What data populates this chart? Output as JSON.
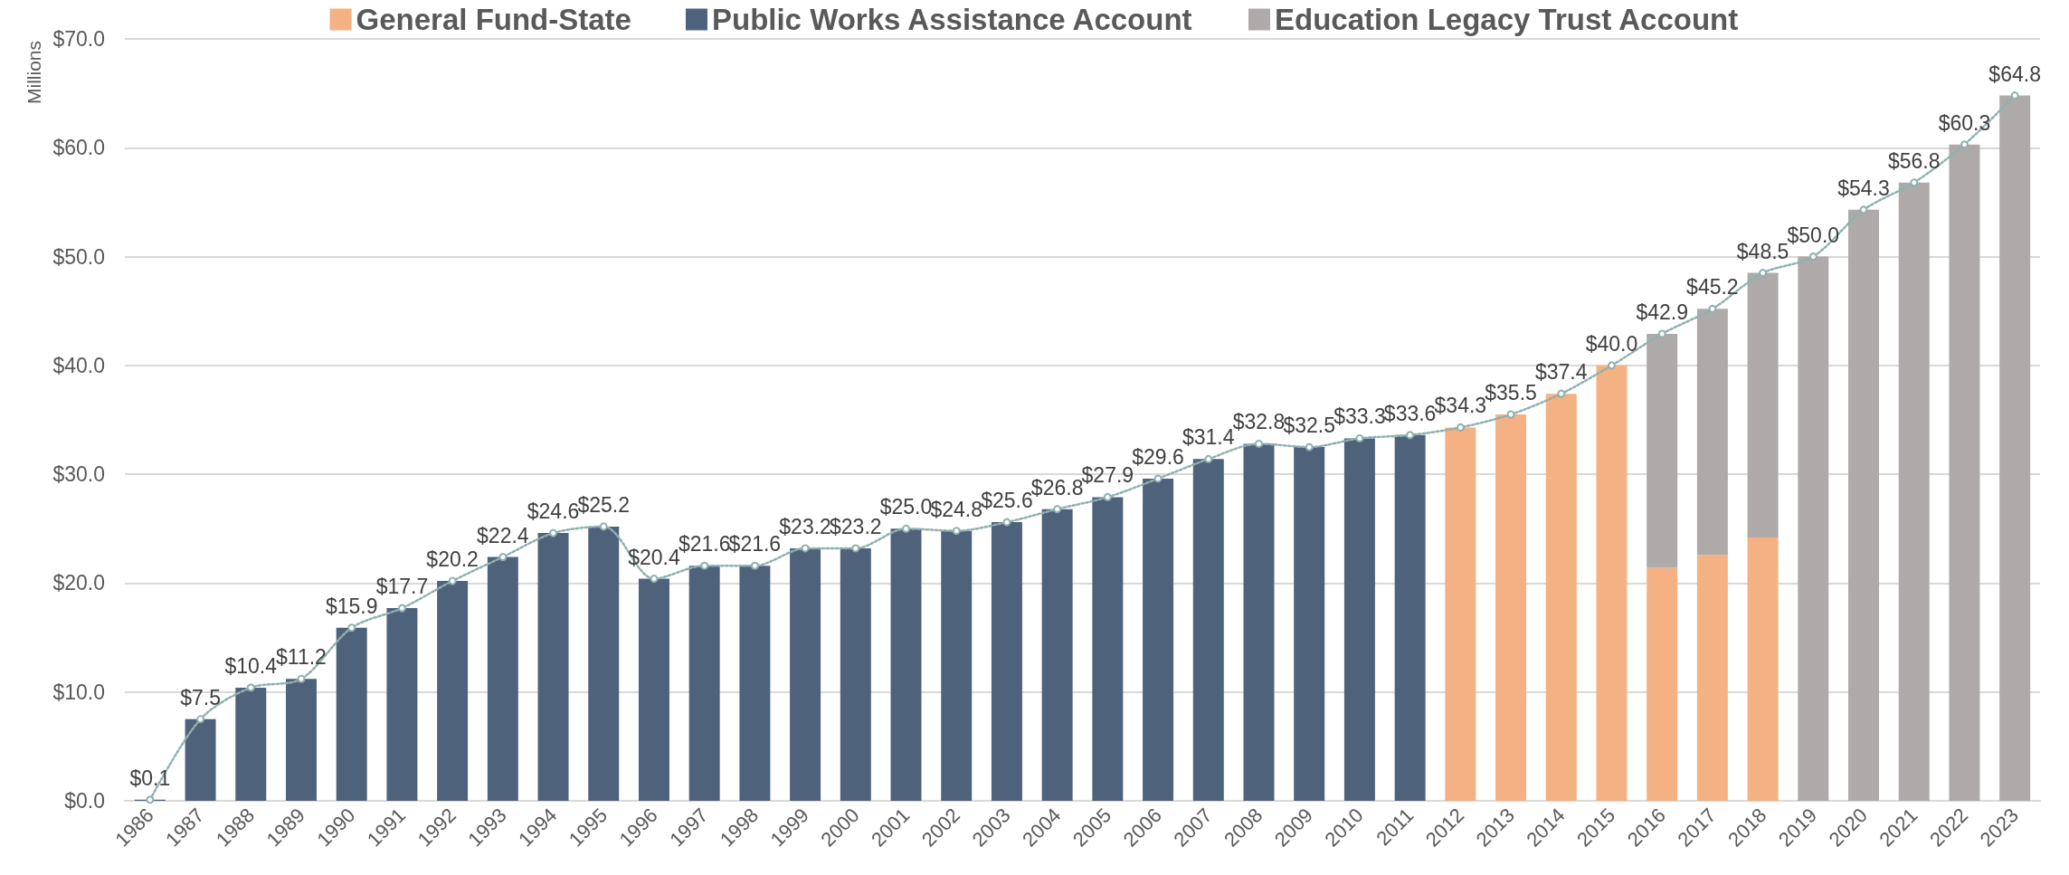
{
  "chart_data": {
    "type": "bar",
    "stacked": true,
    "categories": [
      "1986",
      "1987",
      "1988",
      "1989",
      "1990",
      "1991",
      "1992",
      "1993",
      "1994",
      "1995",
      "1996",
      "1997",
      "1998",
      "1999",
      "2000",
      "2001",
      "2002",
      "2003",
      "2004",
      "2005",
      "2006",
      "2007",
      "2008",
      "2009",
      "2010",
      "2011",
      "2012",
      "2013",
      "2014",
      "2015",
      "2016",
      "2017",
      "2018",
      "2019",
      "2020",
      "2021",
      "2022",
      "2023"
    ],
    "series": [
      {
        "name": "General Fund-State",
        "color": "#f4b183",
        "values": [
          null,
          null,
          null,
          null,
          null,
          null,
          null,
          null,
          null,
          null,
          null,
          null,
          null,
          null,
          null,
          null,
          null,
          null,
          null,
          null,
          null,
          null,
          null,
          null,
          null,
          null,
          34.3,
          35.5,
          37.4,
          40.0,
          21.4,
          22.6,
          24.2,
          null,
          null,
          null,
          null,
          null
        ]
      },
      {
        "name": "Public Works Assistance Account",
        "color": "#4f627c",
        "values": [
          0.1,
          7.5,
          10.4,
          11.2,
          15.9,
          17.7,
          20.2,
          22.4,
          24.6,
          25.2,
          20.4,
          21.6,
          21.6,
          23.2,
          23.2,
          25.0,
          24.8,
          25.6,
          26.8,
          27.9,
          29.6,
          31.4,
          32.8,
          32.5,
          33.3,
          33.6,
          null,
          null,
          null,
          null,
          null,
          null,
          null,
          null,
          null,
          null,
          null,
          null
        ]
      },
      {
        "name": "Education Legacy Trust Account",
        "color": "#aeaaaa",
        "values": [
          null,
          null,
          null,
          null,
          null,
          null,
          null,
          null,
          null,
          null,
          null,
          null,
          null,
          null,
          null,
          null,
          null,
          null,
          null,
          null,
          null,
          null,
          null,
          null,
          null,
          null,
          null,
          null,
          null,
          null,
          21.5,
          22.6,
          24.3,
          50.0,
          54.3,
          56.8,
          60.3,
          64.8
        ]
      },
      {
        "type": "line",
        "color": "#8fb0b0",
        "line_style": "dotted",
        "marker": "circle",
        "values": [
          0.1,
          7.5,
          10.4,
          11.2,
          15.9,
          17.7,
          20.2,
          22.4,
          24.6,
          25.2,
          20.4,
          21.6,
          21.6,
          23.2,
          23.2,
          25.0,
          24.8,
          25.6,
          26.8,
          27.9,
          29.6,
          31.4,
          32.8,
          32.5,
          33.3,
          33.6,
          34.3,
          35.5,
          37.4,
          40.0,
          42.9,
          45.2,
          48.5,
          50.0,
          54.3,
          56.8,
          60.3,
          64.8
        ],
        "value_labels": [
          "$0.1",
          "$7.5",
          "$10.4",
          "$11.2",
          "$15.9",
          "$17.7",
          "$20.2",
          "$22.4",
          "$24.6",
          "$25.2",
          "$20.4",
          "$21.6",
          "$21.6",
          "$23.2",
          "$23.2",
          "$25.0",
          "$24.8",
          "$25.6",
          "$26.8",
          "$27.9",
          "$29.6",
          "$31.4",
          "$32.8",
          "$32.5",
          "$33.3",
          "$33.6",
          "$34.3",
          "$35.5",
          "$37.4",
          "$40.0",
          "$42.9",
          "$45.2",
          "$48.5",
          "$50.0",
          "$54.3",
          "$56.8",
          "$60.3",
          "$64.8"
        ]
      }
    ],
    "ylabel": "Millions",
    "ylim": [
      0,
      70
    ],
    "yticks": [
      {
        "value": 0,
        "label": "$0.0"
      },
      {
        "value": 10,
        "label": "$10.0"
      },
      {
        "value": 20,
        "label": "$20.0"
      },
      {
        "value": 30,
        "label": "$30.0"
      },
      {
        "value": 40,
        "label": "$40.0"
      },
      {
        "value": 50,
        "label": "$50.0"
      },
      {
        "value": 60,
        "label": "$60.0"
      },
      {
        "value": 70,
        "label": "$70.0"
      }
    ],
    "grid": "y",
    "legend": "top"
  }
}
